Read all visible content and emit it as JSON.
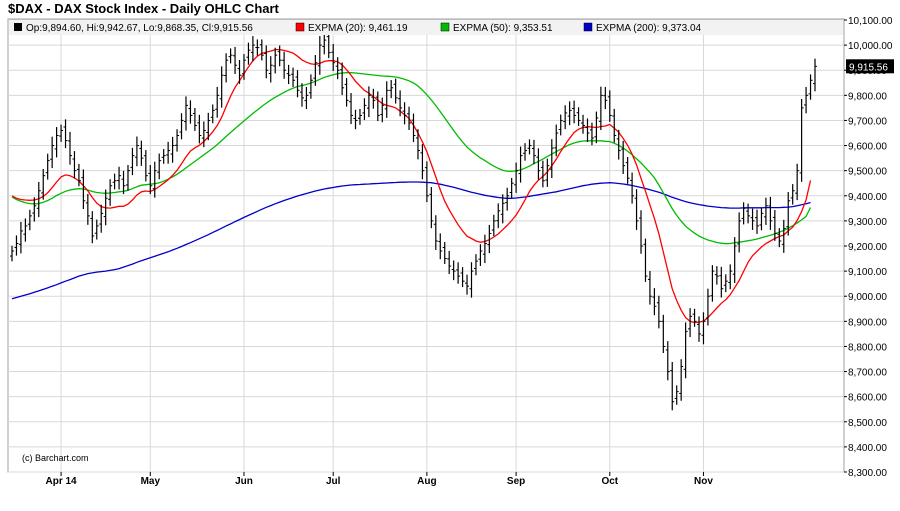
{
  "title": "$DAX - DAX Stock Index - Daily OHLC Chart",
  "legend": {
    "ohlc": "Op:9,894.60, Hi:9,942.67, Lo:9,868.35, Cl:9,915.56",
    "ema20": "EXPMA (20): 9,461.19",
    "ema50": "EXPMA (50): 9,353.51",
    "ema200": "EXPMA (200): 9,373.04"
  },
  "credit": "(c) Barchart.com",
  "last_price_label": "9,915.56",
  "colors": {
    "ohlc": "#000000",
    "ema20": "#ff0000",
    "ema50": "#00bb00",
    "ema200": "#0000cc",
    "grid": "#d8d8d8",
    "legend_bg": "#f2f2f2"
  },
  "chart_data": {
    "type": "ohlc",
    "ylim": [
      8300,
      10100
    ],
    "y_ticks": [
      "10,100.00",
      "10,000.00",
      "9,900.00",
      "9,800.00",
      "9,700.00",
      "9,600.00",
      "9,500.00",
      "9,400.00",
      "9,300.00",
      "9,200.00",
      "9,100.00",
      "9,000.00",
      "8,900.00",
      "8,800.00",
      "8,700.00",
      "8,600.00",
      "8,500.00",
      "8,400.00",
      "8,300.00"
    ],
    "x_ticks": [
      {
        "label": "Apr 14",
        "index": 11
      },
      {
        "label": "May",
        "index": 31
      },
      {
        "label": "Jun",
        "index": 52
      },
      {
        "label": "Jul",
        "index": 72
      },
      {
        "label": "Aug",
        "index": 93
      },
      {
        "label": "Sep",
        "index": 113
      },
      {
        "label": "Oct",
        "index": 134
      },
      {
        "label": "Nov",
        "index": 155
      }
    ],
    "closes": [
      9180,
      9210,
      9260,
      9280,
      9320,
      9360,
      9420,
      9480,
      9540,
      9600,
      9640,
      9660,
      9620,
      9560,
      9500,
      9460,
      9380,
      9320,
      9240,
      9280,
      9330,
      9390,
      9440,
      9460,
      9480,
      9440,
      9500,
      9560,
      9600,
      9550,
      9480,
      9440,
      9500,
      9540,
      9560,
      9580,
      9600,
      9640,
      9700,
      9760,
      9720,
      9680,
      9640,
      9660,
      9700,
      9740,
      9800,
      9880,
      9940,
      9960,
      9920,
      9880,
      9940,
      9980,
      10000,
      9990,
      9960,
      9900,
      9920,
      9960,
      9940,
      9900,
      9880,
      9860,
      9820,
      9790,
      9800,
      9860,
      9930,
      10000,
      10020,
      9970,
      9930,
      9900,
      9830,
      9780,
      9720,
      9700,
      9720,
      9760,
      9800,
      9780,
      9720,
      9760,
      9820,
      9830,
      9790,
      9750,
      9720,
      9690,
      9640,
      9580,
      9500,
      9400,
      9300,
      9220,
      9180,
      9150,
      9120,
      9100,
      9080,
      9060,
      9040,
      9100,
      9140,
      9180,
      9210,
      9250,
      9300,
      9340,
      9370,
      9400,
      9450,
      9500,
      9560,
      9580,
      9600,
      9560,
      9500,
      9460,
      9520,
      9590,
      9650,
      9700,
      9730,
      9740,
      9720,
      9700,
      9680,
      9650,
      9630,
      9710,
      9800,
      9780,
      9720,
      9640,
      9580,
      9520,
      9470,
      9400,
      9300,
      9200,
      9080,
      9000,
      8960,
      8900,
      8800,
      8700,
      8580,
      8620,
      8720,
      8860,
      8920,
      8900,
      8850,
      8900,
      9000,
      9100,
      9080,
      9030,
      9060,
      9100,
      9200,
      9300,
      9350,
      9320,
      9300,
      9280,
      9330,
      9360,
      9300,
      9250,
      9220,
      9270,
      9380,
      9420,
      9500,
      9750,
      9800,
      9860,
      9915.56
    ],
    "ema20": [
      9400,
      9390,
      9385,
      9383,
      9382,
      9383,
      9388,
      9397,
      9412,
      9432,
      9455,
      9475,
      9483,
      9480,
      9471,
      9459,
      9440,
      9420,
      9393,
      9371,
      9357,
      9352,
      9351,
      9354,
      9358,
      9358,
      9367,
      9383,
      9403,
      9416,
      9419,
      9417,
      9425,
      9437,
      9450,
      9464,
      9481,
      9502,
      9527,
      9555,
      9578,
      9591,
      9601,
      9616,
      9634,
      9655,
      9680,
      9713,
      9755,
      9797,
      9832,
      9858,
      9886,
      9913,
      9938,
      9956,
      9967,
      9972,
      9976,
      9982,
      9982,
      9979,
      9974,
      9968,
      9956,
      9941,
      9932,
      9925,
      9923,
      9927,
      9935,
      9938,
      9938,
      9934,
      9921,
      9902,
      9880,
      9856,
      9837,
      9820,
      9809,
      9795,
      9781,
      9767,
      9760,
      9756,
      9750,
      9737,
      9723,
      9708,
      9681,
      9650,
      9615,
      9575,
      9526,
      9475,
      9423,
      9379,
      9344,
      9314,
      9285,
      9260,
      9239,
      9230,
      9220,
      9215,
      9218,
      9225,
      9236,
      9248,
      9265,
      9282,
      9301,
      9323,
      9352,
      9383,
      9417,
      9442,
      9462,
      9477,
      9495,
      9519,
      9546,
      9576,
      9604,
      9629,
      9652,
      9665,
      9672,
      9675,
      9674,
      9672,
      9676,
      9678,
      9684,
      9669,
      9653,
      9628,
      9601,
      9566,
      9522,
      9470,
      9418,
      9364,
      9310,
      9248,
      9176,
      9102,
      9030,
      8983,
      8944,
      8915,
      8900,
      8895,
      8897,
      8901,
      8915,
      8934,
      8953,
      8972,
      8986,
      9006,
      9034,
      9063,
      9099,
      9135,
      9161,
      9179,
      9196,
      9210,
      9220,
      9230,
      9238,
      9244,
      9260,
      9275,
      9302,
      9337,
      9384,
      9461.19
    ],
    "ema50": [
      9395,
      9385,
      9378,
      9372,
      9369,
      9368,
      9369,
      9374,
      9381,
      9390,
      9401,
      9410,
      9418,
      9423,
      9426,
      9428,
      9427,
      9423,
      9417,
      9413,
      9411,
      9410,
      9411,
      9413,
      9416,
      9418,
      9422,
      9428,
      9436,
      9442,
      9444,
      9446,
      9448,
      9452,
      9458,
      9466,
      9475,
      9486,
      9498,
      9511,
      9524,
      9537,
      9550,
      9563,
      9576,
      9589,
      9604,
      9620,
      9636,
      9652,
      9668,
      9683,
      9698,
      9713,
      9728,
      9742,
      9756,
      9769,
      9781,
      9792,
      9802,
      9812,
      9821,
      9829,
      9835,
      9839,
      9843,
      9849,
      9856,
      9864,
      9872,
      9877,
      9882,
      9886,
      9889,
      9890,
      9890,
      9889,
      9887,
      9885,
      9883,
      9881,
      9879,
      9877,
      9876,
      9875,
      9873,
      9869,
      9864,
      9858,
      9849,
      9837,
      9821,
      9802,
      9782,
      9759,
      9735,
      9710,
      9685,
      9660,
      9636,
      9614,
      9594,
      9578,
      9564,
      9551,
      9540,
      9529,
      9518,
      9509,
      9502,
      9498,
      9497,
      9499,
      9503,
      9510,
      9518,
      9528,
      9537,
      9546,
      9556,
      9566,
      9576,
      9585,
      9595,
      9604,
      9610,
      9615,
      9618,
      9619,
      9619,
      9619,
      9619,
      9617,
      9616,
      9609,
      9601,
      9590,
      9578,
      9563,
      9547,
      9531,
      9512,
      9493,
      9471,
      9443,
      9412,
      9380,
      9349,
      9322,
      9299,
      9279,
      9264,
      9251,
      9240,
      9231,
      9224,
      9219,
      9214,
      9211,
      9209,
      9210,
      9213,
      9215,
      9218,
      9221,
      9224,
      9228,
      9233,
      9238,
      9243,
      9249,
      9255,
      9262,
      9271,
      9281,
      9292,
      9304,
      9318,
      9353.51
    ],
    "ema200": [
      8990,
      8995,
      9000,
      9005,
      9010,
      9016,
      9021,
      9027,
      9033,
      9040,
      9046,
      9053,
      9060,
      9066,
      9073,
      9080,
      9085,
      9090,
      9093,
      9096,
      9098,
      9100,
      9103,
      9106,
      9110,
      9116,
      9122,
      9128,
      9135,
      9141,
      9147,
      9153,
      9159,
      9165,
      9171,
      9177,
      9184,
      9191,
      9198,
      9206,
      9213,
      9221,
      9229,
      9237,
      9245,
      9254,
      9262,
      9271,
      9280,
      9288,
      9297,
      9305,
      9314,
      9322,
      9330,
      9338,
      9346,
      9354,
      9361,
      9368,
      9375,
      9381,
      9387,
      9393,
      9399,
      9404,
      9409,
      9414,
      9419,
      9423,
      9427,
      9430,
      9433,
      9436,
      9439,
      9441,
      9443,
      9444,
      9445,
      9446,
      9447,
      9448,
      9449,
      9450,
      9451,
      9452,
      9453,
      9454,
      9454,
      9455,
      9455,
      9455,
      9454,
      9453,
      9452,
      9449,
      9446,
      9442,
      9438,
      9434,
      9429,
      9424,
      9419,
      9414,
      9410,
      9406,
      9402,
      9399,
      9396,
      9393,
      9391,
      9390,
      9390,
      9391,
      9393,
      9395,
      9398,
      9401,
      9404,
      9407,
      9410,
      9413,
      9416,
      9420,
      9424,
      9428,
      9432,
      9436,
      9440,
      9443,
      9446,
      9448,
      9450,
      9451,
      9452,
      9451,
      9449,
      9447,
      9444,
      9441,
      9437,
      9433,
      9429,
      9424,
      9419,
      9414,
      9408,
      9401,
      9394,
      9388,
      9382,
      9377,
      9372,
      9368,
      9365,
      9362,
      9359,
      9357,
      9355,
      9353,
      9352,
      9351,
      9351,
      9351,
      9352,
      9352,
      9352,
      9352,
      9352,
      9353,
      9353,
      9353,
      9353,
      9354,
      9355,
      9357,
      9360,
      9364,
      9368,
      9373.04
    ]
  }
}
